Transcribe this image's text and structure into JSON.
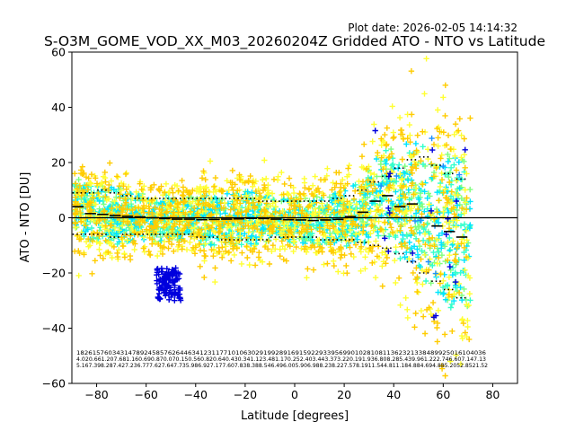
{
  "chart_data": {
    "type": "scatter",
    "title": "S-O3M_GOME_VOD_XX_M03_20260204Z Gridded ATO - NTO vs Latitude",
    "plot_date": "Plot date: 2026-02-05 14:14:32",
    "xlabel": "Latitude [degrees]",
    "ylabel": "ATO - NTO [DU]",
    "xlim": [
      -90,
      90
    ],
    "ylim": [
      -60,
      60
    ],
    "xticks": [
      "−80",
      "−60",
      "−40",
      "−20",
      "0",
      "20",
      "40",
      "60",
      "80"
    ],
    "yticks": [
      "−60",
      "−40",
      "−20",
      "0",
      "20",
      "40",
      "60"
    ],
    "zero_line": 0,
    "marker": "+",
    "scatter_colors": [
      "#7fff7f",
      "#33ffcc",
      "#00e5ff",
      "#ffff33",
      "#ffcc00",
      "#0000dd",
      "#1e90ff",
      "#66ff66"
    ],
    "bins": {
      "lat": [
        -87.5,
        -82.5,
        -77.5,
        -72.5,
        -67.5,
        -62.5,
        -57.5,
        -52.5,
        -47.5,
        -42.5,
        -37.5,
        -32.5,
        -27.5,
        -22.5,
        -17.5,
        -12.5,
        -7.5,
        -2.5,
        2.5,
        7.5,
        12.5,
        17.5,
        22.5,
        27.5,
        32.5,
        37.5,
        42.5,
        47.5,
        52.5,
        57.5,
        62.5,
        67.5
      ],
      "mean": [
        4,
        1.5,
        1.2,
        0.8,
        0.5,
        0.3,
        0,
        -0.3,
        -0.5,
        -0.5,
        -0.7,
        -0.6,
        -0.5,
        -0.4,
        -0.2,
        -0.3,
        -0.5,
        -0.7,
        -0.8,
        -1,
        -0.8,
        -0.6,
        0.4,
        2,
        6,
        8,
        4,
        5,
        0,
        -3,
        -5,
        -7
      ],
      "upper": [
        9,
        9,
        10,
        9,
        8,
        7,
        7,
        7,
        7,
        7,
        7,
        7,
        7,
        7,
        7,
        6,
        6,
        6,
        6,
        6,
        6,
        7,
        8,
        10,
        13,
        15,
        18,
        21,
        22,
        19,
        16,
        14
      ],
      "lower": [
        -6,
        -6,
        -6,
        -7,
        -6,
        -6,
        -6,
        -6,
        -6,
        -6,
        -7,
        -7,
        -8,
        -8,
        -8,
        -8,
        -7,
        -7,
        -7,
        -7,
        -8,
        -8,
        -8,
        -9,
        -10,
        -11,
        -13,
        -16,
        -20,
        -23,
        -26,
        -29
      ]
    },
    "footer_rows": [
      "1826157603431478924585762644634123117710106302919928916915922933956990102810811362321338489925016104036",
      "4.020.661.207.681.160.690.870.070.150.560.820.640.430.341.123.481.170.252.403.443.373.220.191.936.808.285.439.961.222.746.607.147.13",
      "5.167.398.287.427.236.777.627.647.735.986.927.177.607.838.388.546.496.005.906.988.238.227.578.1911.544.811.184.884.694.885.2052.8521.52"
    ]
  }
}
